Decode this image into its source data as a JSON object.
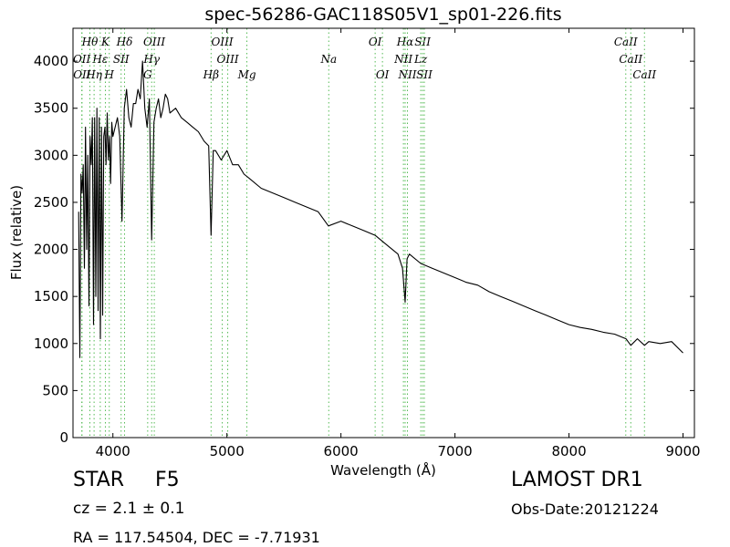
{
  "chart_data": {
    "type": "line",
    "title": "spec-56286-GAC118S05V1_sp01-226.fits",
    "xlabel": "Wavelength (Å)",
    "ylabel": "Flux (relative)",
    "xlim": [
      3650,
      9100
    ],
    "ylim": [
      0,
      4350
    ],
    "xticks": [
      4000,
      5000,
      6000,
      7000,
      8000,
      9000
    ],
    "yticks": [
      0,
      500,
      1000,
      1500,
      2000,
      2500,
      3000,
      3500,
      4000
    ],
    "grid": false,
    "line_color": "#000000",
    "marker_color": "#55bb55",
    "series": [
      {
        "x": [
          3700,
          3710,
          3720,
          3730,
          3740,
          3750,
          3760,
          3770,
          3780,
          3790,
          3800,
          3810,
          3820,
          3830,
          3840,
          3850,
          3860,
          3870,
          3880,
          3890,
          3900,
          3910,
          3920,
          3930,
          3940,
          3950,
          3960,
          3970,
          3980,
          3990,
          4000,
          4020,
          4040,
          4060,
          4080,
          4100,
          4120,
          4140,
          4160,
          4180,
          4200,
          4220,
          4240,
          4260,
          4280,
          4300,
          4320,
          4340,
          4360,
          4380,
          4400,
          4420,
          4440,
          4460,
          4480,
          4500,
          4550,
          4600,
          4650,
          4700,
          4750,
          4800,
          4840,
          4861,
          4880,
          4900,
          4950,
          5000,
          5050,
          5100,
          5150,
          5200,
          5300,
          5400,
          5500,
          5600,
          5700,
          5800,
          5890,
          6000,
          6100,
          6200,
          6300,
          6400,
          6500,
          6540,
          6563,
          6580,
          6600,
          6700,
          6800,
          6900,
          7000,
          7100,
          7200,
          7300,
          7400,
          7500,
          7600,
          7700,
          7800,
          7900,
          8000,
          8100,
          8200,
          8300,
          8400,
          8500,
          8542,
          8600,
          8662,
          8700,
          8800,
          8900,
          9000
        ],
        "y": [
          2400,
          850,
          2800,
          2600,
          2900,
          1800,
          3300,
          2000,
          3000,
          1400,
          3200,
          2900,
          3400,
          1200,
          3400,
          1500,
          3500,
          1350,
          3400,
          1050,
          3300,
          1300,
          3200,
          3300,
          2900,
          3450,
          2950,
          3200,
          2700,
          3350,
          3200,
          3300,
          3400,
          3200,
          2300,
          3500,
          3700,
          3400,
          3300,
          3550,
          3550,
          3700,
          3600,
          4000,
          3500,
          3300,
          3600,
          2100,
          3350,
          3500,
          3600,
          3400,
          3500,
          3650,
          3600,
          3450,
          3500,
          3400,
          3350,
          3300,
          3250,
          3150,
          3100,
          2150,
          3050,
          3050,
          2950,
          3050,
          2900,
          2900,
          2800,
          2750,
          2650,
          2600,
          2550,
          2500,
          2450,
          2400,
          2250,
          2300,
          2250,
          2200,
          2150,
          2050,
          1950,
          1800,
          1440,
          1900,
          1950,
          1850,
          1800,
          1750,
          1700,
          1650,
          1620,
          1550,
          1500,
          1450,
          1400,
          1350,
          1300,
          1250,
          1200,
          1170,
          1150,
          1120,
          1100,
          1050,
          980,
          1050,
          980,
          1020,
          1000,
          1020,
          900
        ]
      }
    ],
    "line_markers": [
      {
        "label": "Hθ",
        "x": 3798,
        "row": 1
      },
      {
        "label": "K",
        "x": 3934,
        "row": 1
      },
      {
        "label": "Hδ",
        "x": 4102,
        "row": 1
      },
      {
        "label": "OIII",
        "x": 4363,
        "row": 1
      },
      {
        "label": "OIII",
        "x": 4959,
        "row": 1
      },
      {
        "label": "OI",
        "x": 6300,
        "row": 1
      },
      {
        "label": "Hα",
        "x": 6563,
        "row": 1
      },
      {
        "label": "SII",
        "x": 6716,
        "row": 1
      },
      {
        "label": "CaII",
        "x": 8498,
        "row": 1
      },
      {
        "label": "OII",
        "x": 3727,
        "row": 2
      },
      {
        "label": "Hε",
        "x": 3889,
        "row": 2
      },
      {
        "label": "SII",
        "x": 4072,
        "row": 2
      },
      {
        "label": "Hγ",
        "x": 4340,
        "row": 2
      },
      {
        "label": "OIII",
        "x": 5007,
        "row": 2
      },
      {
        "label": "NII",
        "x": 6548,
        "row": 2
      },
      {
        "label": "Lz",
        "x": 6700,
        "row": 2
      },
      {
        "label": "CaII",
        "x": 8542,
        "row": 2
      },
      {
        "label": "Na",
        "x": 5893,
        "row": 2
      },
      {
        "label": "OII",
        "x": 3729,
        "row": 3
      },
      {
        "label": "Hη",
        "x": 3835,
        "row": 3
      },
      {
        "label": "H",
        "x": 3968,
        "row": 3
      },
      {
        "label": "G",
        "x": 4305,
        "row": 3
      },
      {
        "label": "Hβ",
        "x": 4861,
        "row": 3
      },
      {
        "label": "Mg",
        "x": 5175,
        "row": 3
      },
      {
        "label": "OI",
        "x": 6364,
        "row": 3
      },
      {
        "label": "NII",
        "x": 6583,
        "row": 3
      },
      {
        "label": "SII",
        "x": 6731,
        "row": 3
      },
      {
        "label": "CaII",
        "x": 8662,
        "row": 3
      }
    ]
  },
  "info": {
    "class": "STAR",
    "subclass": "F5",
    "survey": "LAMOST DR1",
    "cz": "cz = 2.1 ± 0.1",
    "obs_date": "Obs-Date:20121224",
    "radec": "RA = 117.54504, DEC = -7.71931"
  }
}
